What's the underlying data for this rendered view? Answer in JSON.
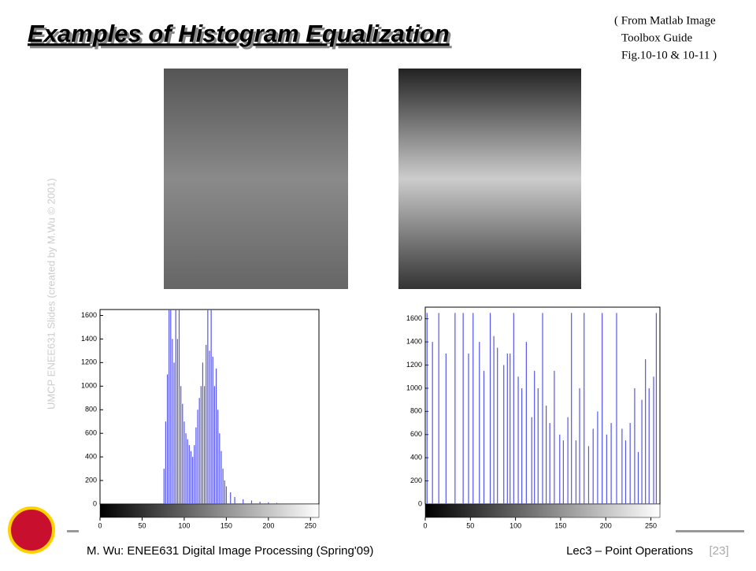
{
  "title": "Examples of Histogram Equalization",
  "source_note": [
    "( From Matlab Image",
    "Toolbox Guide",
    "Fig.10-10 & 10-11 )"
  ],
  "watermark": "UMCP ENEE631 Slides (created by M.Wu © 2001)",
  "footer": {
    "left": "M. Wu: ENEE631 Digital Image Processing (Spring'09)",
    "right": "Lec3 – Point Operations",
    "page": "[23]"
  },
  "chart_data": [
    {
      "type": "bar",
      "color": "#5555ee",
      "x": [
        76,
        78,
        80,
        82,
        84,
        86,
        88,
        90,
        92,
        94,
        96,
        98,
        100,
        102,
        104,
        106,
        108,
        110,
        112,
        114,
        116,
        118,
        120,
        122,
        124,
        126,
        128,
        130,
        132,
        134,
        136,
        138,
        140,
        142,
        144,
        146,
        148,
        150,
        155,
        160,
        170,
        180,
        190,
        200,
        210
      ],
      "values": [
        300,
        700,
        1100,
        1650,
        1650,
        1400,
        1200,
        1650,
        1400,
        1650,
        1000,
        850,
        700,
        600,
        550,
        500,
        450,
        400,
        500,
        650,
        800,
        900,
        1000,
        1200,
        1000,
        1350,
        1650,
        1300,
        1650,
        1250,
        1000,
        1150,
        800,
        600,
        450,
        300,
        200,
        150,
        100,
        60,
        40,
        30,
        20,
        15,
        10
      ],
      "xlim": [
        0,
        260
      ],
      "ylim": [
        0,
        1650
      ],
      "xticks": [
        0,
        50,
        100,
        150,
        200,
        250
      ],
      "yticks": [
        0,
        200,
        400,
        600,
        800,
        1000,
        1200,
        1400,
        1600
      ]
    },
    {
      "type": "bar",
      "color": "#5555ee",
      "x": [
        2,
        8,
        15,
        23,
        33,
        42,
        48,
        53,
        60,
        65,
        72,
        76,
        80,
        87,
        91,
        94,
        98,
        103,
        107,
        112,
        118,
        121,
        125,
        130,
        134,
        138,
        143,
        149,
        153,
        158,
        162,
        167,
        171,
        176,
        181,
        186,
        191,
        196,
        201,
        206,
        212,
        218,
        222,
        227,
        232,
        236,
        240,
        244,
        248,
        253,
        256
      ],
      "values": [
        1650,
        1400,
        1650,
        1300,
        1650,
        1650,
        1300,
        1650,
        1400,
        1150,
        1650,
        1450,
        1350,
        1200,
        1300,
        1300,
        1650,
        1100,
        1000,
        1400,
        750,
        1150,
        1000,
        1650,
        850,
        700,
        1150,
        600,
        550,
        750,
        1650,
        550,
        1000,
        1650,
        500,
        650,
        800,
        1650,
        600,
        700,
        1650,
        650,
        550,
        700,
        1000,
        450,
        900,
        1250,
        1000,
        1100,
        1650
      ],
      "xlim": [
        0,
        260
      ],
      "ylim": [
        0,
        1700
      ],
      "xticks": [
        0,
        50,
        100,
        150,
        200,
        250
      ],
      "yticks": [
        0,
        200,
        400,
        600,
        800,
        1000,
        1200,
        1400,
        1600
      ]
    }
  ]
}
